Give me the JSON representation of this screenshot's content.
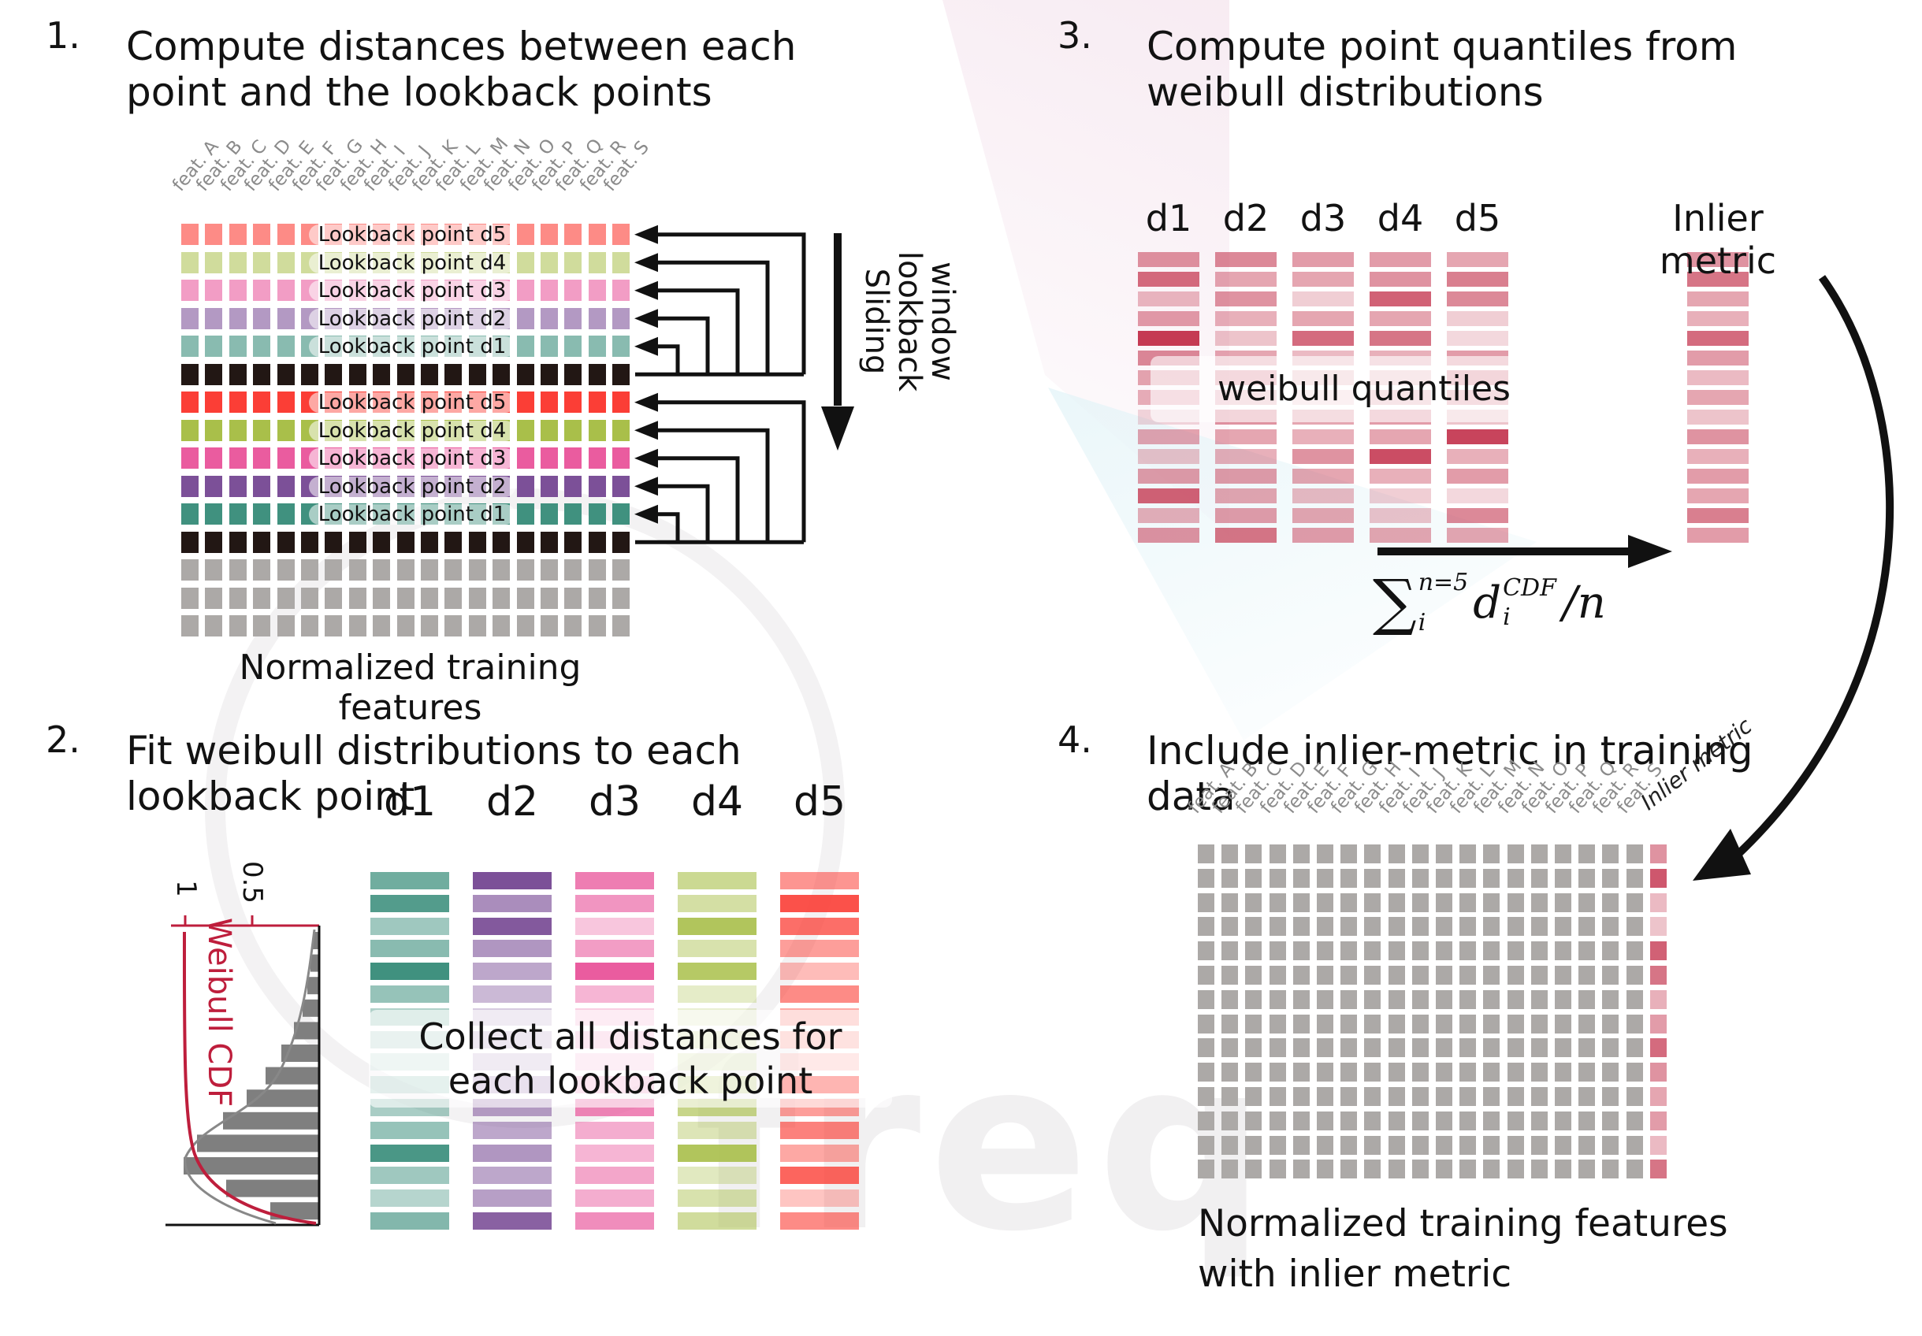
{
  "steps": {
    "s1": {
      "num": "1.",
      "title_line1": "Compute distances between each",
      "title_line2": "point and the lookback points"
    },
    "s2": {
      "num": "2.",
      "title_line1": "Fit weibull distributions to each",
      "title_line2": "lookback point"
    },
    "s3": {
      "num": "3.",
      "title_line1": "Compute point quantiles from",
      "title_line2": "weibull distributions"
    },
    "s4": {
      "num": "4.",
      "title_line1": "Include inlier-metric in training",
      "title_line2": "data"
    }
  },
  "colors": {
    "red_strong": "#FB3E36",
    "green_strong": "#A9BF4A",
    "pink_strong": "#EA5C9F",
    "purple_strong": "#7C5098",
    "teal_strong": "#40917F",
    "black_cell": "#221714",
    "gray_cell": "#ACA9A7",
    "crimson": "#C53A53",
    "weibull_red": "#BE1E3C",
    "line_black": "#111111"
  },
  "panel1": {
    "features": [
      "feat. A",
      "feat. B",
      "feat. C",
      "feat. D",
      "feat. E",
      "feat. F",
      "feat. G",
      "feat. H",
      "feat. I",
      "feat. J",
      "feat. K",
      "feat. L",
      "feat. M",
      "feat. N",
      "feat. O",
      "feat. P",
      "feat. Q",
      "feat. R",
      "feat. S"
    ],
    "caption": "Normalized training features",
    "sliding_words": [
      "Sliding",
      "lookback",
      "window"
    ],
    "rows": [
      {
        "kind": "lookback",
        "label": "Lookback point d5",
        "color": "#FB3E36",
        "alpha": 0.6
      },
      {
        "kind": "lookback",
        "label": "Lookback point d4",
        "color": "#A9BF4A",
        "alpha": 0.55
      },
      {
        "kind": "lookback",
        "label": "Lookback point d3",
        "color": "#EA5C9F",
        "alpha": 0.6
      },
      {
        "kind": "lookback",
        "label": "Lookback point d2",
        "color": "#7C5098",
        "alpha": 0.58
      },
      {
        "kind": "lookback",
        "label": "Lookback point d1",
        "color": "#40917F",
        "alpha": 0.62
      },
      {
        "kind": "current",
        "color": "#221714",
        "alpha": 1
      },
      {
        "kind": "lookback",
        "label": "Lookback point d5",
        "color": "#FB3E36",
        "alpha": 1
      },
      {
        "kind": "lookback",
        "label": "Lookback point d4",
        "color": "#A9BF4A",
        "alpha": 1
      },
      {
        "kind": "lookback",
        "label": "Lookback point d3",
        "color": "#EA5C9F",
        "alpha": 1
      },
      {
        "kind": "lookback",
        "label": "Lookback point d2",
        "color": "#7C5098",
        "alpha": 1
      },
      {
        "kind": "lookback",
        "label": "Lookback point d1",
        "color": "#40917F",
        "alpha": 1
      },
      {
        "kind": "current",
        "color": "#221714",
        "alpha": 1
      },
      {
        "kind": "plain",
        "color": "#ACA9A7",
        "alpha": 1
      },
      {
        "kind": "plain",
        "color": "#ACA9A7",
        "alpha": 1
      },
      {
        "kind": "plain",
        "color": "#ACA9A7",
        "alpha": 1
      }
    ]
  },
  "panel2": {
    "collect_lines": [
      "Collect all distances for",
      "each lookback point"
    ],
    "plot": {
      "ylabel": "Weibull CDF",
      "ticks": [
        "1",
        "0.5"
      ],
      "hist_lengths": [
        8,
        11,
        15,
        21,
        32,
        48,
        68,
        92,
        122,
        155,
        172,
        118,
        62
      ]
    },
    "columns": [
      {
        "name": "d1",
        "color": "#40917F",
        "bars": [
          0.75,
          0.9,
          0.5,
          0.62,
          1.0,
          0.55,
          0.42,
          0.3,
          0.22,
          0.35,
          0.45,
          0.55,
          0.95,
          0.5,
          0.38,
          0.65
        ]
      },
      {
        "name": "d2",
        "color": "#7C5098",
        "bars": [
          1.0,
          0.65,
          0.95,
          0.6,
          0.5,
          0.4,
          0.3,
          0.35,
          0.3,
          0.45,
          0.55,
          0.5,
          0.6,
          0.5,
          0.55,
          0.9
        ]
      },
      {
        "name": "d3",
        "color": "#EA5C9F",
        "bars": [
          0.8,
          0.65,
          0.35,
          0.6,
          1.0,
          0.45,
          0.3,
          0.35,
          0.25,
          0.4,
          0.75,
          0.5,
          0.45,
          0.55,
          0.5,
          0.7
        ]
      },
      {
        "name": "d4",
        "color": "#A9BF4A",
        "bars": [
          0.6,
          0.5,
          0.9,
          0.45,
          0.85,
          0.3,
          0.25,
          0.35,
          0.3,
          0.5,
          0.65,
          0.4,
          0.9,
          0.35,
          0.45,
          0.55
        ]
      },
      {
        "name": "d5",
        "color": "#FB3E36",
        "bars": [
          0.55,
          0.9,
          0.75,
          0.5,
          0.35,
          0.6,
          0.45,
          0.4,
          0.3,
          1.0,
          0.5,
          0.65,
          0.45,
          0.8,
          0.3,
          0.6
        ]
      }
    ]
  },
  "panel3": {
    "quantiles_label": "weibull quantiles",
    "inlier_header": "Inlier metric",
    "formula": {
      "sigma": "∑",
      "upper": "n=5",
      "lower": "i",
      "var": "d",
      "var_sup": "CDF",
      "var_sub": "i",
      "tail": "/n"
    },
    "columns": [
      {
        "name": "d1",
        "bars": [
          0.55,
          0.75,
          0.35,
          0.5,
          1.0,
          0.6,
          0.45,
          0.4,
          0.2,
          0.45,
          0.3,
          0.5,
          0.8,
          0.4,
          0.55
        ]
      },
      {
        "name": "d2",
        "bars": [
          0.6,
          0.45,
          0.55,
          0.4,
          0.3,
          0.45,
          0.5,
          0.35,
          0.55,
          0.45,
          0.4,
          0.5,
          0.45,
          0.5,
          0.7
        ]
      },
      {
        "name": "d3",
        "bars": [
          0.5,
          0.45,
          0.25,
          0.45,
          0.75,
          0.35,
          0.3,
          0.2,
          0.45,
          0.4,
          0.55,
          0.45,
          0.35,
          0.45,
          0.5
        ]
      },
      {
        "name": "d4",
        "bars": [
          0.5,
          0.55,
          0.8,
          0.45,
          0.7,
          0.4,
          0.3,
          0.35,
          0.5,
          0.45,
          0.9,
          0.4,
          0.25,
          0.3,
          0.45
        ]
      },
      {
        "name": "d5",
        "bars": [
          0.45,
          0.65,
          0.6,
          0.25,
          0.2,
          0.5,
          0.55,
          0.45,
          0.3,
          0.95,
          0.4,
          0.5,
          0.2,
          0.6,
          0.45
        ]
      }
    ],
    "inlier_bars": [
      0.55,
      0.7,
      0.45,
      0.4,
      0.75,
      0.5,
      0.35,
      0.45,
      0.3,
      0.55,
      0.4,
      0.5,
      0.45,
      0.65,
      0.5
    ]
  },
  "panel4": {
    "features": [
      "feat. A",
      "feat. B",
      "feat. C",
      "feat. D",
      "feat. E",
      "feat. F",
      "feat. G",
      "feat. H",
      "feat. I",
      "feat. J",
      "feat. K",
      "feat. L",
      "feat. M",
      "feat. N",
      "feat. O",
      "feat. P",
      "feat. Q",
      "feat. R",
      "feat. S"
    ],
    "inlier_header": "Inlier metric",
    "caption_line1": "Normalized training features",
    "caption_line2": "with inlier metric",
    "n_rows": 14,
    "inlier_bars": [
      0.55,
      0.85,
      0.35,
      0.3,
      0.8,
      0.7,
      0.4,
      0.5,
      0.75,
      0.55,
      0.45,
      0.5,
      0.35,
      0.7
    ]
  }
}
